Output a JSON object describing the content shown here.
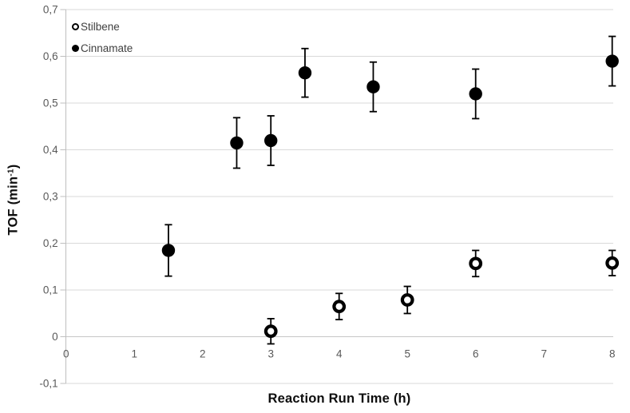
{
  "chart_data": {
    "type": "scatter",
    "title": "",
    "xlabel": "Reaction Run Time (h)",
    "ylabel": "TOF (min⁻¹)",
    "ylabel_parts": {
      "base": "TOF (min",
      "sup": "-1",
      "end": ")"
    },
    "xlim": [
      0,
      8
    ],
    "ylim": [
      -0.1,
      0.7
    ],
    "x_ticks": [
      0,
      1,
      2,
      3,
      4,
      5,
      6,
      7,
      8
    ],
    "x_tick_labels": [
      "0",
      "1",
      "2",
      "3",
      "4",
      "5",
      "6",
      "7",
      "8"
    ],
    "y_ticks": [
      -0.1,
      0,
      0.1,
      0.2,
      0.3,
      0.4,
      0.5,
      0.6,
      0.7
    ],
    "y_tick_labels": [
      "-0,1",
      "0",
      "0,1",
      "0,2",
      "0,3",
      "0,4",
      "0,5",
      "0,6",
      "0,7"
    ],
    "decimal_separator": ",",
    "grid": "horizontal",
    "legend_position": "top-left-inside",
    "error_bars": true,
    "series": [
      {
        "name": "Stilbene",
        "marker": "open-circle",
        "color": "#000000",
        "points": [
          {
            "x": 3,
            "y": 0.012,
            "err": 0.027
          },
          {
            "x": 4,
            "y": 0.065,
            "err": 0.028
          },
          {
            "x": 5,
            "y": 0.079,
            "err": 0.029
          },
          {
            "x": 6,
            "y": 0.157,
            "err": 0.028
          },
          {
            "x": 8,
            "y": 0.158,
            "err": 0.027
          }
        ]
      },
      {
        "name": "Cinnamate",
        "marker": "filled-circle",
        "color": "#000000",
        "points": [
          {
            "x": 1.5,
            "y": 0.185,
            "err": 0.055
          },
          {
            "x": 2.5,
            "y": 0.415,
            "err": 0.054
          },
          {
            "x": 3,
            "y": 0.42,
            "err": 0.053
          },
          {
            "x": 3.5,
            "y": 0.565,
            "err": 0.052
          },
          {
            "x": 4.5,
            "y": 0.535,
            "err": 0.053
          },
          {
            "x": 6,
            "y": 0.52,
            "err": 0.053
          },
          {
            "x": 8,
            "y": 0.59,
            "err": 0.053
          }
        ]
      }
    ],
    "colors": {
      "background": "#ffffff",
      "marker": "#000000",
      "gridline": "#d9d9d9",
      "axis_line": "#bfbfbf",
      "zero_line": "#c6c6c6",
      "tick_label": "#595959",
      "axis_title": "#0d0d0d",
      "legend_text": "#3f3f3f"
    }
  }
}
